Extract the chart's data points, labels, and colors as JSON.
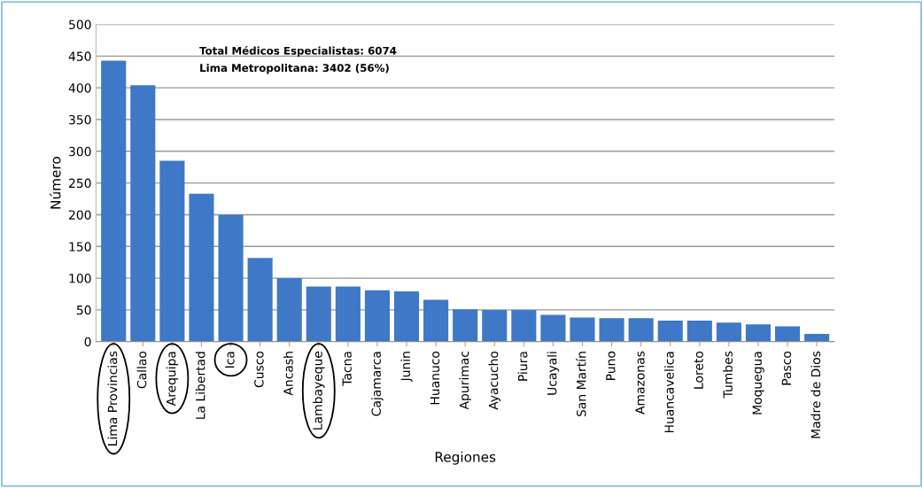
{
  "chart_data": {
    "type": "bar",
    "xlabel": "Regiones",
    "ylabel": "Número",
    "categories": [
      "Lima Provincias",
      "Callao",
      "Arequipa",
      "La Libertad",
      "Ica",
      "Cusco",
      "Ancash",
      "Lambayeque",
      "Tacna",
      "Cajamarca",
      "Junin",
      "Huanuco",
      "Apurimac",
      "Ayacucho",
      "Piura",
      "Ucayali",
      "San Martín",
      "Puno",
      "Amazonas",
      "Huancavelica",
      "Loreto",
      "Tumbes",
      "Moquegua",
      "Pasco",
      "Madre de Dios"
    ],
    "values": [
      443,
      404,
      285,
      233,
      200,
      132,
      100,
      87,
      87,
      81,
      79,
      66,
      51,
      50,
      50,
      42,
      38,
      37,
      37,
      33,
      33,
      30,
      27,
      24,
      12
    ],
    "color": "#3f78c6",
    "ylim": [
      0,
      500
    ],
    "yticks": [
      0,
      50,
      100,
      150,
      200,
      250,
      300,
      350,
      400,
      450,
      500
    ],
    "grid": "y",
    "annotations": [
      "Total Médicos Especialistas: 6074",
      "Lima Metropolitana: 3402 (56%)"
    ]
  }
}
